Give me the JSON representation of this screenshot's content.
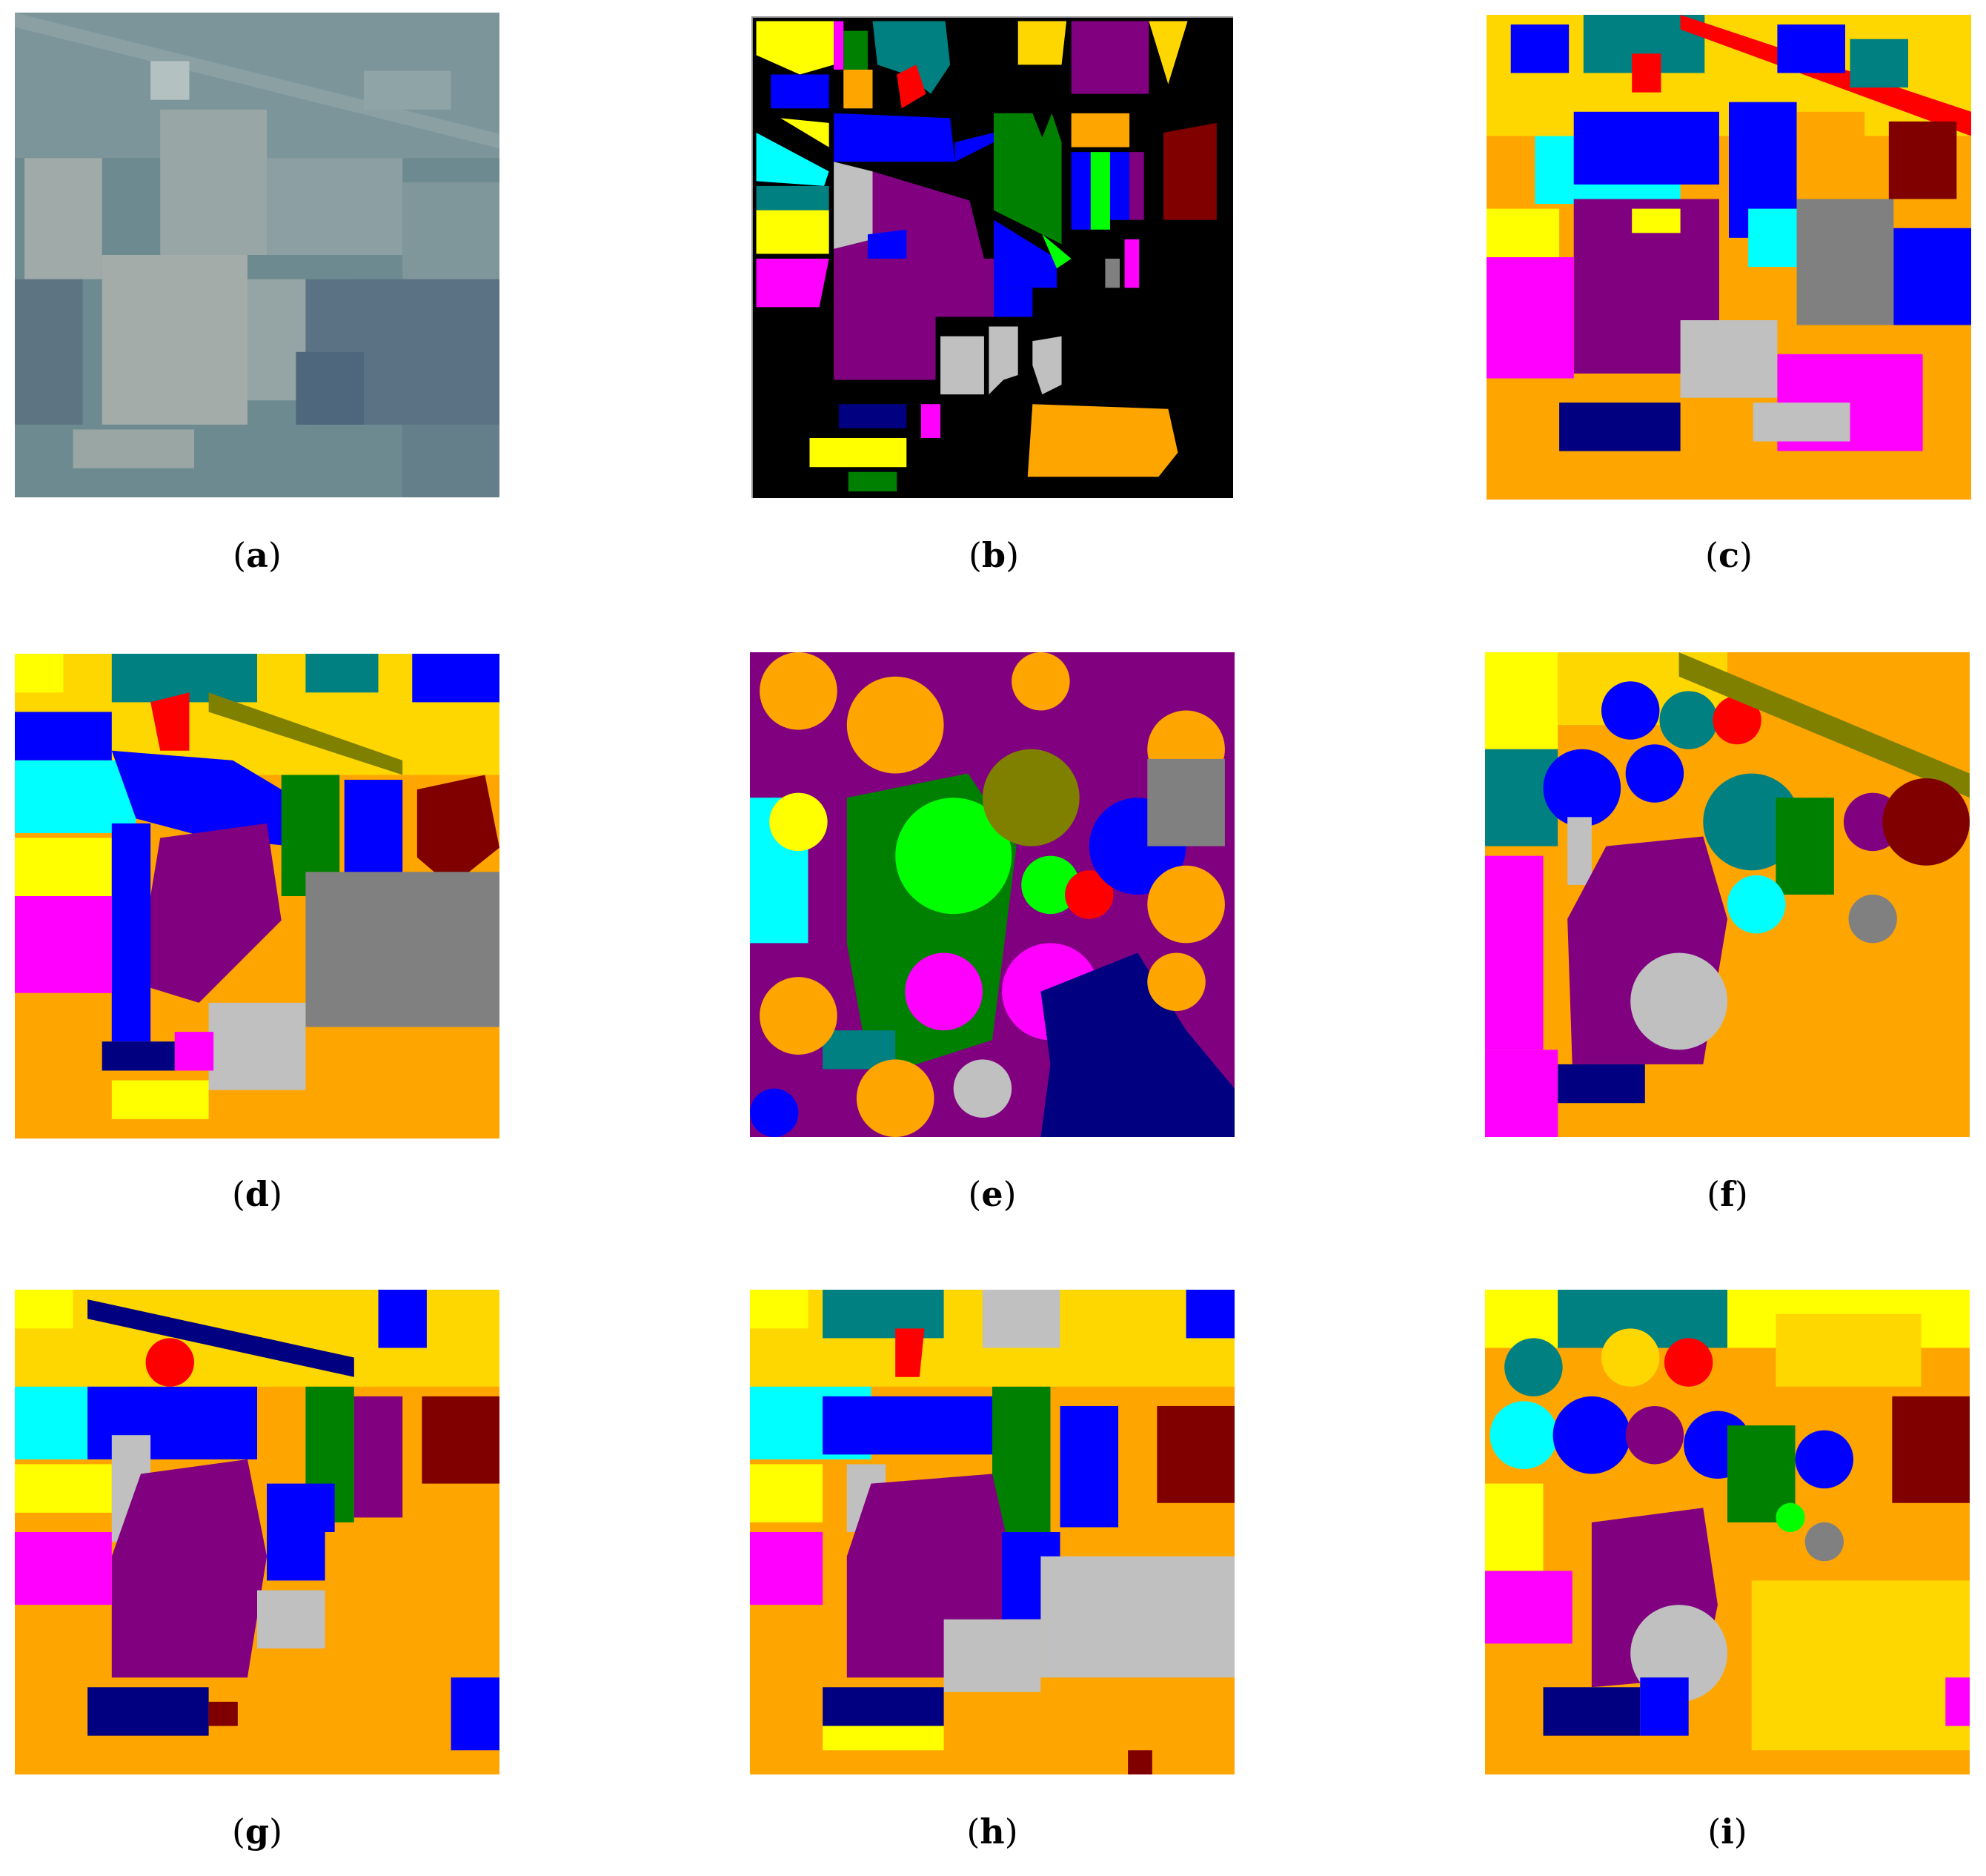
{
  "figure": {
    "captions": {
      "a": "(a)",
      "b": "(b)",
      "c": "(c)",
      "d": "(d)",
      "e": "(e)",
      "f": "(f)",
      "g": "(g)",
      "h": "(h)",
      "i": "(i)"
    },
    "class_colors": {
      "background": "#000000",
      "yellow": "#FFFF00",
      "gold": "#FFD700",
      "orange": "#FFA500",
      "purple": "#800080",
      "blue": "#0000FF",
      "navy": "#000080",
      "teal": "#008080",
      "cyan": "#00FFFF",
      "green": "#008000",
      "lime": "#00FF00",
      "red": "#FF0000",
      "maroon": "#800000",
      "magenta": "#FF00FF",
      "silver": "#C0C0C0",
      "gray": "#808080",
      "olive": "#808000"
    }
  }
}
